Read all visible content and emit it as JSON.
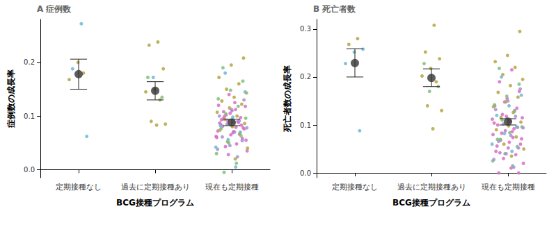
{
  "chart_data": [
    {
      "type": "strip",
      "title": "A 症例数",
      "x_label": "BCG接種プログラム",
      "y_label": "症例数の成長率",
      "categories": [
        "定期接種なし",
        "過去に定期接種あり",
        "現在も定期接種"
      ],
      "ylim": [
        -0.015,
        0.28
      ],
      "yticks": [
        {
          "value": 0,
          "label": "0.0"
        },
        {
          "value": 0.1,
          "label": "0.1"
        },
        {
          "value": 0.2,
          "label": "0.2"
        }
      ],
      "grid": false,
      "groups": [
        [
          {
            "color": "#6cb8d8",
            "values": [
              0.272,
              0.188,
              0.062
            ]
          },
          {
            "color": "#b5a642",
            "values": [
              0.2,
              0.168,
              0.18
            ]
          }
        ],
        [
          {
            "color": "#b5a642",
            "values": [
              0.238,
              0.232,
              0.188,
              0.15,
              0.145,
              0.13,
              0.09,
              0.085,
              0.083
            ]
          },
          {
            "color": "#7fbf7b",
            "values": [
              0.172,
              0.135
            ]
          },
          {
            "color": "#6cb8d8",
            "values": [
              0.172
            ]
          }
        ],
        [
          {
            "color": "#d66fc4",
            "values": [
              0.112,
              0.095,
              0.078,
              0.065,
              0.12,
              0.088,
              0.102,
              0.055,
              0.071,
              0.093,
              0.083,
              0.14,
              0.06,
              0.048,
              0.099,
              0.076,
              0.11,
              0.087,
              0.066,
              0.092,
              0.035,
              0.125,
              0.081,
              0.058,
              0.105,
              0.072,
              0.09,
              0.043,
              0.118,
              0.069,
              0.084,
              0.097,
              0.028,
              0.062,
              0.079,
              0.108
            ]
          },
          {
            "color": "#b5a642",
            "values": [
              0.208,
              0.195,
              0.172,
              0.16,
              0.15,
              0.143,
              0.135,
              0.128,
              0.122,
              0.115,
              0.107,
              0.1,
              0.094,
              0.086,
              0.08,
              0.074,
              0.068,
              0.052,
              0.04,
              0.02
            ]
          },
          {
            "color": "#7fbf7b",
            "values": [
              0.19,
              0.165,
              0.148,
              0.132,
              0.118,
              0.104,
              0.096,
              0.089,
              0.077,
              0.063,
              0.05,
              0.03,
              0.012,
              -0.005
            ]
          },
          {
            "color": "#a78fd8",
            "values": [
              0.13,
              0.112,
              0.1,
              0.091,
              0.085,
              0.078,
              0.07,
              0.061,
              0.054,
              0.045,
              0.038,
              0.024
            ]
          },
          {
            "color": "#6cb8d8",
            "values": [
              0.18,
              0.145,
              0.098,
              0.082,
              0.07,
              0.056,
              0.042,
              0.005
            ]
          }
        ]
      ],
      "mean": [
        0.178,
        0.147,
        0.088
      ],
      "error_low": [
        0.15,
        0.13,
        0.082
      ],
      "error_high": [
        0.206,
        0.164,
        0.094
      ]
    },
    {
      "type": "strip",
      "title": "B 死亡者数",
      "x_label": "BCG接種プログラム",
      "y_label": "死亡者数の成長率",
      "categories": [
        "定期接種なし",
        "過去に定期接種あり",
        "現在も定期接種"
      ],
      "ylim": [
        -0.01,
        0.32
      ],
      "yticks": [
        {
          "value": 0,
          "label": "0.0"
        },
        {
          "value": 0.1,
          "label": "0.1"
        },
        {
          "value": 0.2,
          "label": "0.2"
        },
        {
          "value": 0.3,
          "label": "0.3"
        }
      ],
      "grid": false,
      "groups": [
        [
          {
            "color": "#b5a642",
            "values": [
              0.28,
              0.268
            ]
          },
          {
            "color": "#6cb8d8",
            "values": [
              0.258,
              0.252,
              0.228,
              0.088
            ]
          }
        ],
        [
          {
            "color": "#b5a642",
            "values": [
              0.308,
              0.252,
              0.238,
              0.218,
              0.202,
              0.19,
              0.14,
              0.13,
              0.092
            ]
          },
          {
            "color": "#7fbf7b",
            "values": [
              0.228,
              0.18,
              0.17
            ]
          }
        ],
        [
          {
            "color": "#d66fc4",
            "values": [
              0.215,
              0.19,
              0.17,
              0.155,
              0.14,
              0.13,
              0.122,
              0.115,
              0.108,
              0.1,
              0.095,
              0.088,
              0.08,
              0.074,
              0.068,
              0.06,
              0.052,
              0.045,
              0.038,
              0.03,
              0.02,
              0.01,
              0,
              0,
              0.118,
              0.104,
              0.092,
              0.083,
              0.071,
              0.064,
              0.056,
              0.135,
              0.148,
              0.112,
              0.086,
              0.042
            ]
          },
          {
            "color": "#b5a642",
            "values": [
              0.295,
              0.245,
              0.232,
              0.22,
              0.205,
              0.195,
              0.182,
              0.168,
              0.158,
              0.148,
              0.138,
              0.126,
              0.116,
              0.106,
              0.098,
              0.09,
              0.075,
              0.06,
              0.05,
              0.035
            ]
          },
          {
            "color": "#7fbf7b",
            "values": [
              0.218,
              0.185,
              0.16,
              0.142,
              0.128,
              0.11,
              0.096,
              0.084,
              0.07,
              0.055,
              0.04,
              0.025,
              0.015,
              0.07
            ]
          },
          {
            "color": "#a78fd8",
            "values": [
              0.175,
              0.15,
              0.132,
              0.118,
              0.102,
              0.094,
              0.078,
              0.066,
              0.052,
              0.04,
              0.028,
              0.012
            ]
          },
          {
            "color": "#6cb8d8",
            "values": [
              0.2,
              0.162,
              0.14,
              0.12,
              0.096,
              0.082,
              0.06,
              0.045
            ]
          }
        ]
      ],
      "mean": [
        0.229,
        0.198,
        0.107
      ],
      "error_low": [
        0.2,
        0.18,
        0.1
      ],
      "error_high": [
        0.259,
        0.217,
        0.113
      ]
    }
  ]
}
